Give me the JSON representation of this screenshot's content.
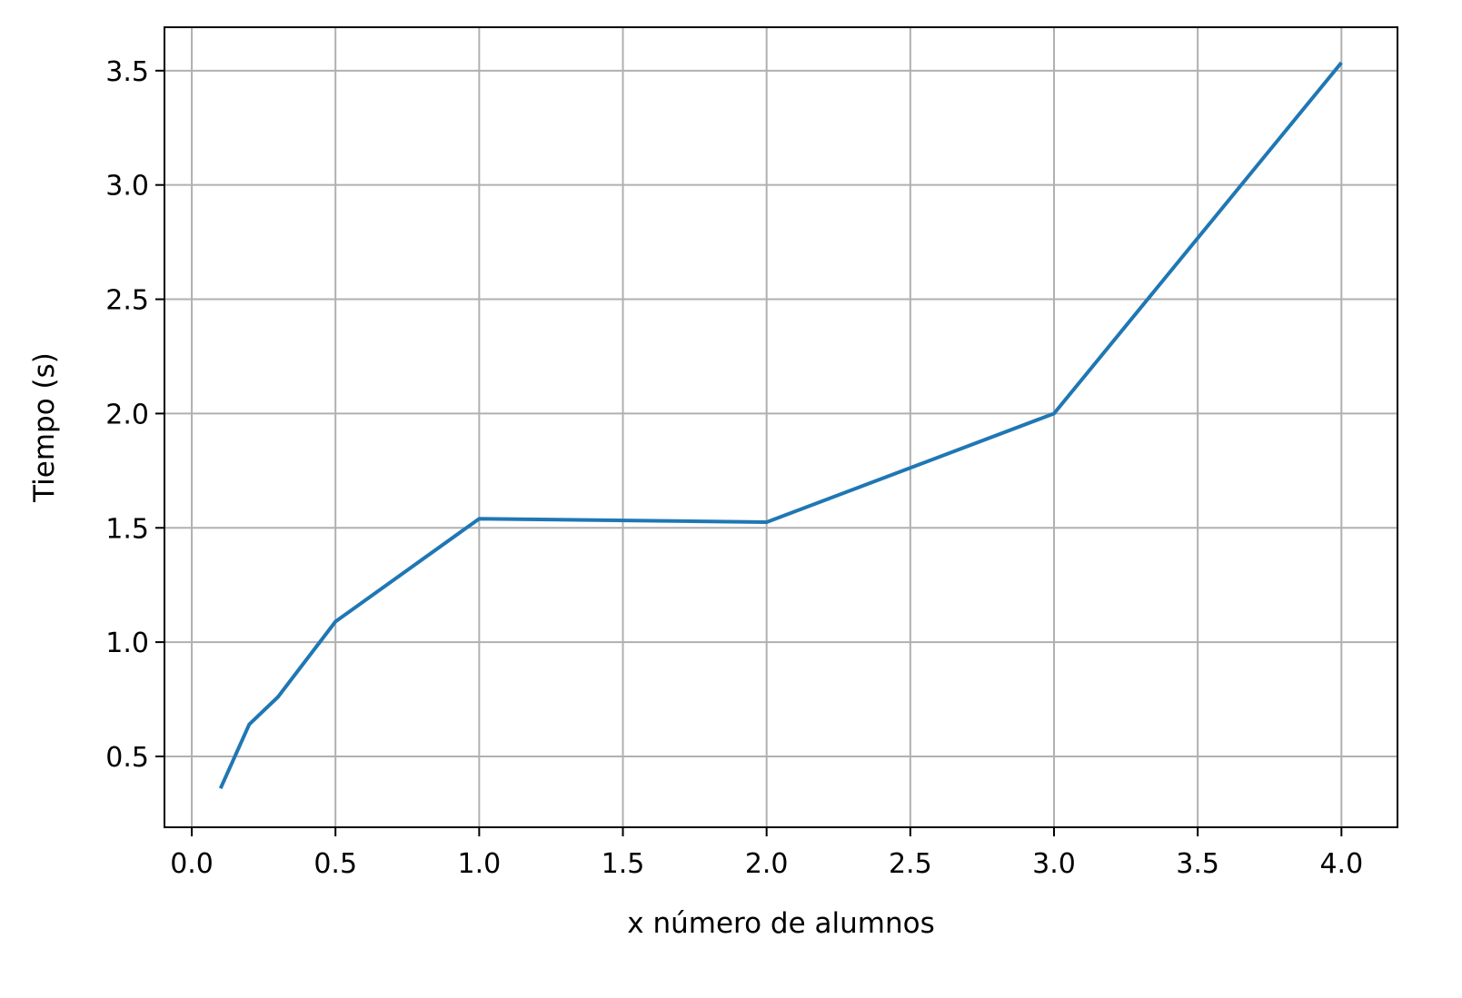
{
  "chart_data": {
    "type": "line",
    "title": "",
    "xlabel": "x número de alumnos",
    "ylabel": "Tiempo (s)",
    "xlim": [
      -0.095,
      4.195
    ],
    "ylim": [
      0.19,
      3.69
    ],
    "grid": true,
    "x_ticks": [
      0.0,
      0.5,
      1.0,
      1.5,
      2.0,
      2.5,
      3.0,
      3.5,
      4.0
    ],
    "x_tick_labels": [
      "0.0",
      "0.5",
      "1.0",
      "1.5",
      "2.0",
      "2.5",
      "3.0",
      "3.5",
      "4.0"
    ],
    "y_ticks": [
      0.5,
      1.0,
      1.5,
      2.0,
      2.5,
      3.0,
      3.5
    ],
    "y_tick_labels": [
      "0.5",
      "1.0",
      "1.5",
      "2.0",
      "2.5",
      "3.0",
      "3.5"
    ],
    "series": [
      {
        "color": "#1f77b4",
        "x": [
          0.1,
          0.2,
          0.3,
          0.5,
          1.0,
          2.0,
          3.0,
          4.0
        ],
        "y": [
          0.36,
          0.64,
          0.76,
          1.09,
          1.54,
          1.525,
          2.0,
          3.535
        ]
      }
    ]
  }
}
